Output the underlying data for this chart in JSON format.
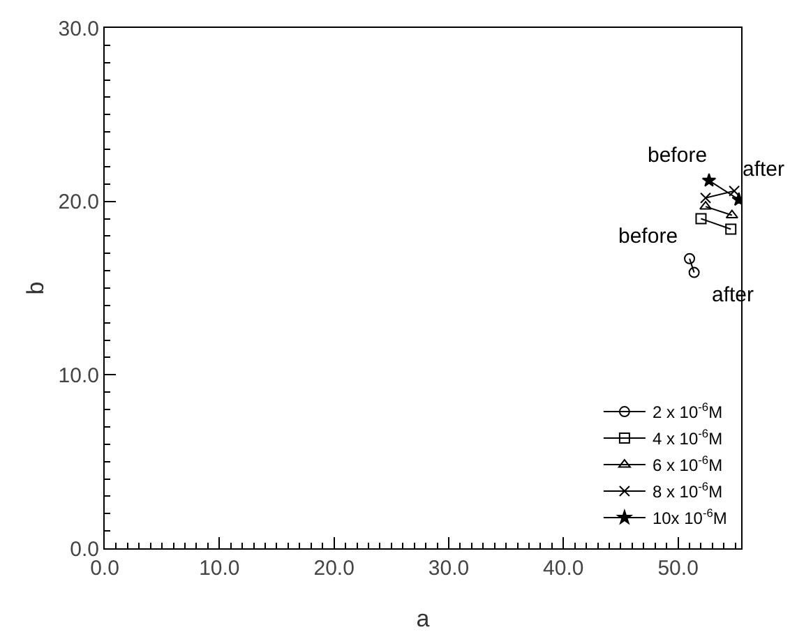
{
  "chart_data": {
    "type": "line",
    "xlabel": "a",
    "ylabel": "b",
    "xlim": [
      0,
      55.5
    ],
    "ylim": [
      0,
      30
    ],
    "xticks": [
      {
        "value": 0,
        "label": "0.0"
      },
      {
        "value": 10,
        "label": "10.0"
      },
      {
        "value": 20,
        "label": "20.0"
      },
      {
        "value": 30,
        "label": "30.0"
      },
      {
        "value": 40,
        "label": "40.0"
      },
      {
        "value": 50,
        "label": "50.0"
      }
    ],
    "yticks": [
      {
        "value": 0,
        "label": "0.0"
      },
      {
        "value": 10,
        "label": "10.0"
      },
      {
        "value": 20,
        "label": "20.0"
      },
      {
        "value": 30,
        "label": "30.0"
      }
    ],
    "grid": false,
    "legend": "bottom right",
    "line_style": "solid",
    "series": [
      {
        "name": "2 x 10$^{-6}$M",
        "color": "#000000",
        "marker": "circle",
        "x": [
          51.0,
          51.4
        ],
        "values": [
          16.7,
          15.9
        ]
      },
      {
        "name": "4 x 10$^{-6}$M",
        "color": "#000000",
        "marker": "square",
        "x": [
          52.0,
          54.6
        ],
        "values": [
          19.0,
          18.4
        ]
      },
      {
        "name": "6 x 10$^{-6}$M",
        "color": "#000000",
        "marker": "triangle",
        "x": [
          52.4,
          54.7
        ],
        "values": [
          19.7,
          19.2
        ]
      },
      {
        "name": "8 x 10$^{-6}$M",
        "color": "#000000",
        "marker": "cross",
        "x": [
          52.4,
          54.9
        ],
        "values": [
          20.2,
          20.6
        ]
      },
      {
        "name": "10x 10$^{-6}$M",
        "color": "#000000",
        "marker": "star",
        "x": [
          52.7,
          55.3
        ],
        "values": [
          21.2,
          20.1
        ]
      }
    ],
    "annotations": [
      {
        "text": "before",
        "x": 52.7,
        "y": 21.2
      },
      {
        "text": "after",
        "x": 55.3,
        "y": 20.1
      },
      {
        "text": "before",
        "x": 51.0,
        "y": 16.7
      },
      {
        "text": "after",
        "x": 51.4,
        "y": 15.9
      }
    ]
  }
}
